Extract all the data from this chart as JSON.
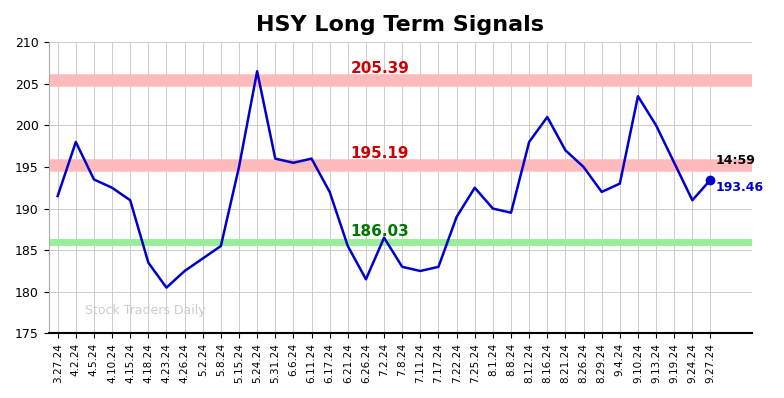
{
  "title": "HSY Long Term Signals",
  "title_fontsize": 16,
  "title_fontweight": "bold",
  "ylabel_min": 175,
  "ylabel_max": 210,
  "yticks": [
    175,
    180,
    185,
    190,
    195,
    200,
    205,
    210
  ],
  "hline_red1": 205.39,
  "hline_red2": 195.19,
  "hline_green": 186.03,
  "hline_red_color": "#ffbbbb",
  "hline_green_color": "#99ee99",
  "label_red1": "205.39",
  "label_red2": "195.19",
  "label_green": "186.03",
  "label_red_color": "#cc0000",
  "label_green_color": "#007700",
  "annotation_time": "14:59",
  "annotation_price": "193.46",
  "annotation_price_color": "#0000cc",
  "watermark": "Stock Traders Daily",
  "watermark_color": "#cccccc",
  "line_color": "#0000cc",
  "dot_color": "#0000cc",
  "bg_color": "#ffffff",
  "grid_color": "#cccccc",
  "x_labels": [
    "3.27.24",
    "4.2.24",
    "4.5.24",
    "4.10.24",
    "4.15.24",
    "4.18.24",
    "4.23.24",
    "4.26.24",
    "5.2.24",
    "5.8.24",
    "5.15.24",
    "5.24.24",
    "5.31.24",
    "6.6.24",
    "6.11.24",
    "6.17.24",
    "6.21.24",
    "6.26.24",
    "7.2.24",
    "7.8.24",
    "7.11.24",
    "7.17.24",
    "7.22.24",
    "7.25.24",
    "8.1.24",
    "8.8.24",
    "8.12.24",
    "8.16.24",
    "8.21.24",
    "8.26.24",
    "8.29.24",
    "9.4.24",
    "9.10.24",
    "9.13.24",
    "9.19.24",
    "9.24.24",
    "9.27.24"
  ],
  "y_values": [
    191.5,
    198.0,
    193.5,
    192.5,
    191.0,
    183.5,
    180.5,
    182.5,
    184.0,
    185.5,
    195.0,
    206.5,
    196.0,
    195.5,
    196.0,
    192.0,
    185.5,
    181.5,
    186.5,
    183.0,
    182.5,
    183.0,
    189.0,
    192.5,
    190.0,
    189.5,
    198.0,
    201.0,
    197.0,
    195.0,
    192.0,
    193.0,
    203.5,
    200.0,
    195.5,
    191.0,
    193.46
  ]
}
